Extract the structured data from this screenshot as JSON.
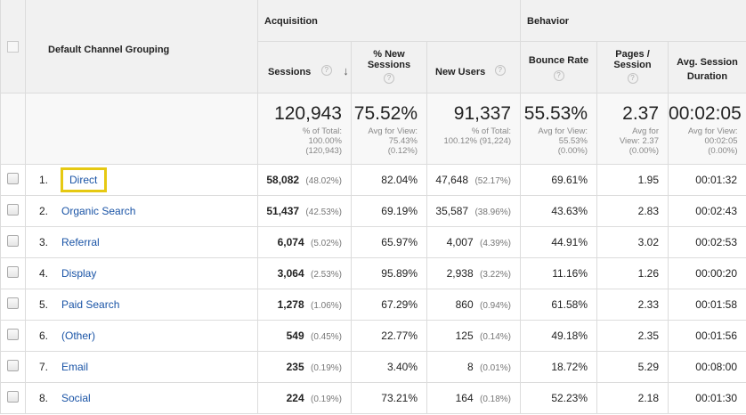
{
  "header": {
    "dimension_label": "Default Channel Grouping",
    "group_acquisition": "Acquisition",
    "group_behavior": "Behavior",
    "col_sessions": "Sessions",
    "col_pct_new_l1": "% New",
    "col_pct_new_l2": "Sessions",
    "col_new_users": "New Users",
    "col_bounce_rate": "Bounce Rate",
    "col_pages_l1": "Pages /",
    "col_pages_l2": "Session",
    "col_duration_l1": "Avg. Session",
    "col_duration_l2": "Duration",
    "help_glyph": "?",
    "sort_glyph": "↓"
  },
  "totals": {
    "sessions": {
      "value": "120,943",
      "sub1": "% of Total:",
      "sub2": "100.00%",
      "sub3": "(120,943)"
    },
    "pct_new": {
      "value": "75.52%",
      "sub1": "Avg for View:",
      "sub2": "75.43%",
      "sub3": "(0.12%)"
    },
    "new_users": {
      "value": "91,337",
      "sub1": "% of Total:",
      "sub2": "100.12% (91,224)"
    },
    "bounce": {
      "value": "55.53%",
      "sub1": "Avg for View:",
      "sub2": "55.53%",
      "sub3": "(0.00%)"
    },
    "pages": {
      "value": "2.37",
      "sub1": "Avg for",
      "sub2": "View: 2.37",
      "sub3": "(0.00%)"
    },
    "duration": {
      "value": "00:02:05",
      "sub1": "Avg for View:",
      "sub2": "00:02:05",
      "sub3": "(0.00%)"
    }
  },
  "rows": [
    {
      "idx": "1.",
      "channel": "Direct",
      "sessions": "58,082",
      "sessions_pct": "(48.02%)",
      "pct_new": "82.04%",
      "new_users": "47,648",
      "new_users_pct": "(52.17%)",
      "bounce": "69.61%",
      "pages": "1.95",
      "duration": "00:01:32"
    },
    {
      "idx": "2.",
      "channel": "Organic Search",
      "sessions": "51,437",
      "sessions_pct": "(42.53%)",
      "pct_new": "69.19%",
      "new_users": "35,587",
      "new_users_pct": "(38.96%)",
      "bounce": "43.63%",
      "pages": "2.83",
      "duration": "00:02:43"
    },
    {
      "idx": "3.",
      "channel": "Referral",
      "sessions": "6,074",
      "sessions_pct": "(5.02%)",
      "pct_new": "65.97%",
      "new_users": "4,007",
      "new_users_pct": "(4.39%)",
      "bounce": "44.91%",
      "pages": "3.02",
      "duration": "00:02:53"
    },
    {
      "idx": "4.",
      "channel": "Display",
      "sessions": "3,064",
      "sessions_pct": "(2.53%)",
      "pct_new": "95.89%",
      "new_users": "2,938",
      "new_users_pct": "(3.22%)",
      "bounce": "11.16%",
      "pages": "1.26",
      "duration": "00:00:20"
    },
    {
      "idx": "5.",
      "channel": "Paid Search",
      "sessions": "1,278",
      "sessions_pct": "(1.06%)",
      "pct_new": "67.29%",
      "new_users": "860",
      "new_users_pct": "(0.94%)",
      "bounce": "61.58%",
      "pages": "2.33",
      "duration": "00:01:58"
    },
    {
      "idx": "6.",
      "channel": "(Other)",
      "sessions": "549",
      "sessions_pct": "(0.45%)",
      "pct_new": "22.77%",
      "new_users": "125",
      "new_users_pct": "(0.14%)",
      "bounce": "49.18%",
      "pages": "2.35",
      "duration": "00:01:56"
    },
    {
      "idx": "7.",
      "channel": "Email",
      "sessions": "235",
      "sessions_pct": "(0.19%)",
      "pct_new": "3.40%",
      "new_users": "8",
      "new_users_pct": "(0.01%)",
      "bounce": "18.72%",
      "pages": "5.29",
      "duration": "00:08:00"
    },
    {
      "idx": "8.",
      "channel": "Social",
      "sessions": "224",
      "sessions_pct": "(0.19%)",
      "pct_new": "73.21%",
      "new_users": "164",
      "new_users_pct": "(0.18%)",
      "bounce": "52.23%",
      "pages": "2.18",
      "duration": "00:01:30"
    }
  ],
  "colors": {
    "link": "#1a54a6",
    "highlight": "#e6c912",
    "header_bg": "#f1f1f1"
  }
}
